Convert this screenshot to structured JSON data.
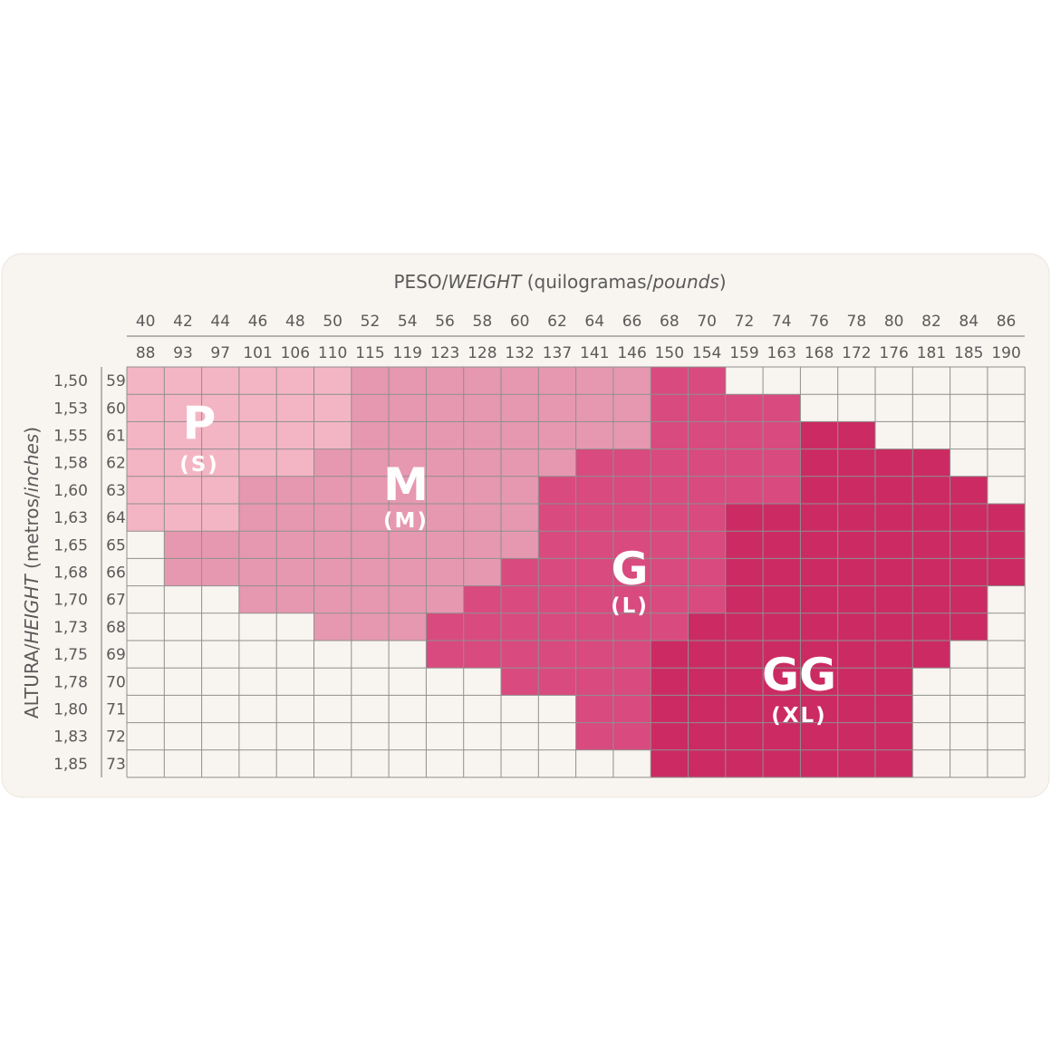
{
  "weight_title": {
    "a": "PESO/",
    "b": "WEIGHT",
    "c": " (quilogramas/",
    "d": "pounds",
    "e": ")"
  },
  "height_title": {
    "a": "ALTURA/",
    "b": "HEIGHT",
    "c": " (metros/",
    "d": "inches",
    "e": ")"
  },
  "kg": [
    "40",
    "42",
    "44",
    "46",
    "48",
    "50",
    "52",
    "54",
    "56",
    "58",
    "60",
    "62",
    "64",
    "66",
    "68",
    "70",
    "72",
    "74",
    "76",
    "78",
    "80",
    "82",
    "84",
    "86"
  ],
  "lbs": [
    "88",
    "93",
    "97",
    "101",
    "106",
    "110",
    "115",
    "119",
    "123",
    "128",
    "132",
    "137",
    "141",
    "146",
    "150",
    "154",
    "159",
    "163",
    "168",
    "172",
    "176",
    "181",
    "185",
    "190"
  ],
  "heights": [
    "1,50",
    "1,53",
    "1,55",
    "1,58",
    "1,60",
    "1,63",
    "1,65",
    "1,68",
    "1,70",
    "1,73",
    "1,75",
    "1,78",
    "1,80",
    "1,83",
    "1,85"
  ],
  "inches": [
    "59",
    "60",
    "61",
    "62",
    "63",
    "64",
    "65",
    "66",
    "67",
    "68",
    "69",
    "70",
    "71",
    "72",
    "73"
  ],
  "sizes": [
    {
      "label": "P",
      "alt": "(S)",
      "color": "#f3b5c4"
    },
    {
      "label": "M",
      "alt": "(M)",
      "color": "#e698b0"
    },
    {
      "label": "G",
      "alt": "(L)",
      "color": "#d94a7e"
    },
    {
      "label": "GG",
      "alt": "(XL)",
      "color": "#cb2b62"
    }
  ],
  "grid": [
    [
      "P",
      "P",
      "P",
      "P",
      "P",
      "P",
      "M",
      "M",
      "M",
      "M",
      "M",
      "M",
      "M",
      "M",
      "G",
      "G",
      null,
      null,
      null,
      null,
      null,
      null,
      null,
      null
    ],
    [
      "P",
      "P",
      "P",
      "P",
      "P",
      "P",
      "M",
      "M",
      "M",
      "M",
      "M",
      "M",
      "M",
      "M",
      "G",
      "G",
      "G",
      "G",
      null,
      null,
      null,
      null,
      null,
      null
    ],
    [
      "P",
      "P",
      "P",
      "P",
      "P",
      "P",
      "M",
      "M",
      "M",
      "M",
      "M",
      "M",
      "M",
      "M",
      "G",
      "G",
      "G",
      "G",
      "GG",
      "GG",
      null,
      null,
      null,
      null
    ],
    [
      "P",
      "P",
      "P",
      "P",
      "P",
      "M",
      "M",
      "M",
      "M",
      "M",
      "M",
      "M",
      "G",
      "G",
      "G",
      "G",
      "G",
      "G",
      "GG",
      "GG",
      "GG",
      "GG",
      null,
      null
    ],
    [
      "P",
      "P",
      "P",
      "M",
      "M",
      "M",
      "M",
      "M",
      "M",
      "M",
      "M",
      "G",
      "G",
      "G",
      "G",
      "G",
      "G",
      "G",
      "GG",
      "GG",
      "GG",
      "GG",
      "GG",
      null
    ],
    [
      "P",
      "P",
      "P",
      "M",
      "M",
      "M",
      "M",
      "M",
      "M",
      "M",
      "M",
      "G",
      "G",
      "G",
      "G",
      "G",
      "GG",
      "GG",
      "GG",
      "GG",
      "GG",
      "GG",
      "GG",
      "GG"
    ],
    [
      null,
      "M",
      "M",
      "M",
      "M",
      "M",
      "M",
      "M",
      "M",
      "M",
      "M",
      "G",
      "G",
      "G",
      "G",
      "G",
      "GG",
      "GG",
      "GG",
      "GG",
      "GG",
      "GG",
      "GG",
      "GG"
    ],
    [
      null,
      "M",
      "M",
      "M",
      "M",
      "M",
      "M",
      "M",
      "M",
      "M",
      "G",
      "G",
      "G",
      "G",
      "G",
      "G",
      "GG",
      "GG",
      "GG",
      "GG",
      "GG",
      "GG",
      "GG",
      "GG"
    ],
    [
      null,
      null,
      null,
      "M",
      "M",
      "M",
      "M",
      "M",
      "M",
      "G",
      "G",
      "G",
      "G",
      "G",
      "G",
      "G",
      "GG",
      "GG",
      "GG",
      "GG",
      "GG",
      "GG",
      "GG",
      null
    ],
    [
      null,
      null,
      null,
      null,
      null,
      "M",
      "M",
      "M",
      "G",
      "G",
      "G",
      "G",
      "G",
      "G",
      "G",
      "GG",
      "GG",
      "GG",
      "GG",
      "GG",
      "GG",
      "GG",
      "GG",
      null
    ],
    [
      null,
      null,
      null,
      null,
      null,
      null,
      null,
      null,
      "G",
      "G",
      "G",
      "G",
      "G",
      "G",
      "GG",
      "GG",
      "GG",
      "GG",
      "GG",
      "GG",
      "GG",
      "GG",
      null,
      null
    ],
    [
      null,
      null,
      null,
      null,
      null,
      null,
      null,
      null,
      null,
      null,
      "G",
      "G",
      "G",
      "G",
      "GG",
      "GG",
      "GG",
      "GG",
      "GG",
      "GG",
      "GG",
      null,
      null,
      null
    ],
    [
      null,
      null,
      null,
      null,
      null,
      null,
      null,
      null,
      null,
      null,
      null,
      null,
      "G",
      "G",
      "GG",
      "GG",
      "GG",
      "GG",
      "GG",
      "GG",
      "GG",
      null,
      null,
      null
    ],
    [
      null,
      null,
      null,
      null,
      null,
      null,
      null,
      null,
      null,
      null,
      null,
      null,
      "G",
      "G",
      "GG",
      "GG",
      "GG",
      "GG",
      "GG",
      "GG",
      "GG",
      null,
      null,
      null
    ],
    [
      null,
      null,
      null,
      null,
      null,
      null,
      null,
      null,
      null,
      null,
      null,
      null,
      null,
      null,
      "GG",
      "GG",
      "GG",
      "GG",
      "GG",
      "GG",
      "GG",
      null,
      null,
      null
    ]
  ]
}
